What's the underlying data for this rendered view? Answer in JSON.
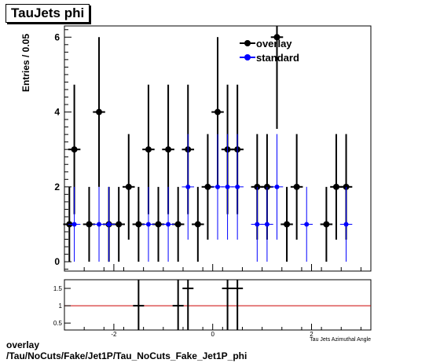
{
  "title": "TauJets phi",
  "footer": {
    "line1": "overlay",
    "line2": "/Tau/NoCuts/Fake/Jet1P/Tau_NoCuts_Fake_Jet1P_phi"
  },
  "chart_data": [
    {
      "type": "scatter",
      "ylabel": "Entries / 0.05",
      "xlabel": "Tau Jets Azimuthal Angle",
      "xlim": [
        -3.0,
        3.2
      ],
      "ylim": [
        -0.25,
        6.3
      ],
      "yticks": [
        0,
        2,
        4,
        6
      ],
      "xticks": [
        -2,
        0,
        2
      ],
      "grid": false,
      "legend_position": "top-right",
      "colors": {
        "overlay": "#000000",
        "standard": "#0000ff"
      },
      "series": [
        {
          "name": "overlay",
          "x": [
            -2.9,
            -2.8,
            -2.5,
            -2.3,
            -2.1,
            -1.9,
            -1.7,
            -1.5,
            -1.3,
            -1.1,
            -0.9,
            -0.7,
            -0.5,
            -0.3,
            -0.1,
            0.1,
            0.3,
            0.5,
            0.9,
            1.1,
            1.3,
            1.5,
            1.7,
            2.3,
            2.5,
            2.7
          ],
          "y": [
            1,
            3,
            1,
            4,
            1,
            1,
            2,
            1,
            3,
            1,
            3,
            1,
            3,
            1,
            2,
            4,
            3,
            3,
            2,
            2,
            6,
            1,
            2,
            1,
            2,
            2
          ],
          "err": [
            1,
            1.73,
            1,
            2,
            1,
            1,
            1.41,
            1,
            1.73,
            1,
            1.73,
            1,
            1.73,
            1,
            1.41,
            2,
            1.73,
            1.73,
            1.41,
            1.41,
            2.45,
            1,
            1.41,
            1,
            1.41,
            1.41
          ]
        },
        {
          "name": "standard",
          "x": [
            -2.8,
            -2.3,
            -2.1,
            -1.3,
            -0.9,
            -0.5,
            0.1,
            0.3,
            0.5,
            0.9,
            1.1,
            1.3,
            1.9,
            2.7
          ],
          "y": [
            1,
            1,
            1,
            1,
            1,
            2,
            2,
            2,
            2,
            1,
            1,
            2,
            1,
            1
          ],
          "err": [
            1,
            1,
            1,
            1,
            1,
            1.41,
            1.41,
            1.41,
            1.41,
            1,
            1,
            1.41,
            1,
            1
          ]
        }
      ]
    },
    {
      "type": "scatter",
      "xlabel": "Tau Jets Azimuthal Angle",
      "xlim": [
        -3.0,
        3.2
      ],
      "ylim": [
        0.3,
        1.75
      ],
      "yticks": [
        0.5,
        1,
        1.5
      ],
      "xticks": [
        -2,
        0,
        2
      ],
      "reference_line": 1,
      "reference_color": "#cc0000",
      "series": [
        {
          "name": "ratio",
          "x": [
            -1.5,
            -0.7,
            -0.5,
            0.3,
            0.5
          ],
          "y": [
            1.0,
            1.0,
            1.5,
            1.5,
            1.5
          ],
          "err": [
            1.41,
            1.41,
            1.3,
            1.3,
            1.3
          ]
        }
      ]
    }
  ]
}
